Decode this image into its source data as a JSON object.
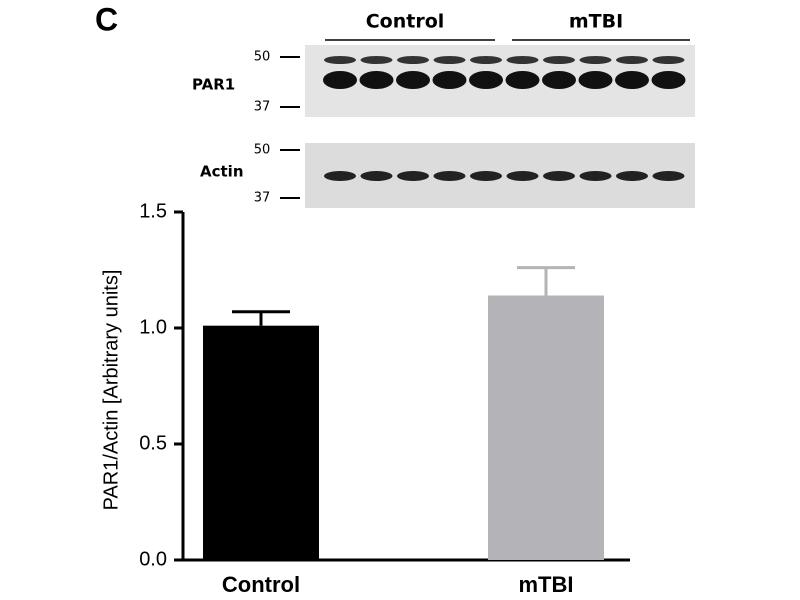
{
  "chart_data": {
    "type": "bar",
    "panel_label": "C",
    "y_label": "PAR1/Actin [Arbitrary units]",
    "categories": [
      "Control",
      "mTBI"
    ],
    "values": [
      1.01,
      1.14
    ],
    "errors": [
      0.06,
      0.12
    ],
    "colors": [
      "#000000",
      "#b3b3b8"
    ],
    "ylim": [
      0,
      1.5
    ],
    "yticks": [
      {
        "value": 0,
        "label": "0.0"
      },
      0.5,
      {
        "value": 1,
        "label": "1.0"
      },
      1.5
    ],
    "blot": {
      "groups": [
        "Control",
        "mTBI"
      ],
      "panels": [
        {
          "label": "PAR1",
          "markers": [
            50,
            37
          ]
        },
        {
          "label": "Actin",
          "markers": [
            50,
            37
          ]
        }
      ]
    }
  }
}
